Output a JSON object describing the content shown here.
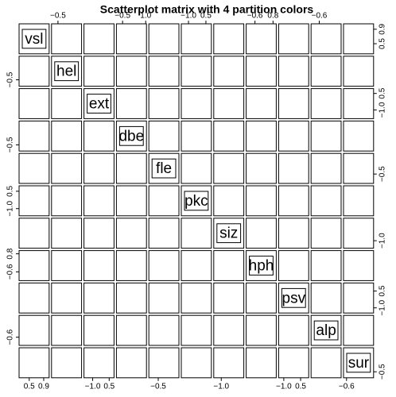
{
  "chart_data": {
    "type": "scatter_matrix",
    "title": "Scatterplot matrix with 4 partition colors",
    "variables": [
      {
        "name": "vsl",
        "lim": [
          0.22,
          1.05
        ],
        "bottom_ticks": [
          0.5,
          0.9
        ],
        "right_ticks": [
          0.5,
          0.9
        ]
      },
      {
        "name": "hel",
        "lim": [
          -0.8,
          0.6
        ],
        "top_ticks": [
          {
            "value": -0.5,
            "label": "−0.5"
          }
        ],
        "left_ticks": [
          {
            "value": -0.5,
            "label": "−0.5"
          }
        ]
      },
      {
        "name": "ext",
        "lim": [
          -1.79,
          0.94
        ],
        "bottom_ticks": [
          {
            "value": -1.0,
            "label": "−1.0"
          },
          0.5
        ],
        "right_ticks": [
          {
            "value": -1.0,
            "label": "−1.0"
          },
          0.5
        ]
      },
      {
        "name": "dbe",
        "lim": [
          -0.9,
          1.05
        ],
        "top_ticks": [
          {
            "value": -0.5,
            "label": "−0.5"
          },
          {
            "value": 1.0,
            "label": "1.0"
          }
        ],
        "left_ticks": [
          {
            "value": -0.5,
            "label": "−0.5"
          }
        ]
      },
      {
        "name": "fle",
        "lim": [
          -1.0,
          0.6
        ],
        "bottom_ticks": [
          {
            "value": -0.5,
            "label": "−0.5"
          }
        ],
        "right_ticks": [
          {
            "value": -0.5,
            "label": "−0.5"
          }
        ]
      },
      {
        "name": "pkc",
        "lim": [
          -1.62,
          0.97
        ],
        "top_ticks": [
          {
            "value": -1.0,
            "label": "−1.0"
          },
          0.5
        ],
        "left_ticks": [
          {
            "value": -1.0,
            "label": "−1.0"
          },
          0.5
        ]
      },
      {
        "name": "siz",
        "lim": [
          -1.4,
          0.2
        ],
        "bottom_ticks": [
          {
            "value": -1.0,
            "label": "−1.0"
          }
        ],
        "right_ticks": [
          {
            "value": -1.0,
            "label": "−1.0"
          }
        ]
      },
      {
        "name": "hph",
        "lim": [
          -1.28,
          1.05
        ],
        "top_ticks": [
          {
            "value": -0.6,
            "label": "−0.6"
          },
          0.8
        ],
        "left_ticks": [
          {
            "value": -0.6,
            "label": "−0.6"
          },
          0.8
        ]
      },
      {
        "name": "psv",
        "lim": [
          -1.46,
          1.22
        ],
        "bottom_ticks": [
          {
            "value": -1.0,
            "label": "−1.0"
          },
          0.5
        ],
        "right_ticks": [
          {
            "value": -1.0,
            "label": "−1.0"
          },
          0.5
        ]
      },
      {
        "name": "alp",
        "lim": [
          -0.9,
          0.2
        ],
        "top_ticks": [
          {
            "value": -0.6,
            "label": "−0.6"
          }
        ],
        "left_ticks": [
          {
            "value": -0.6,
            "label": "−0.6"
          }
        ]
      },
      {
        "name": "sur",
        "lim": [
          -0.7,
          0.3
        ],
        "bottom_ticks": [
          {
            "value": -0.6,
            "label": "−0.6"
          }
        ],
        "right_ticks": [
          {
            "value": -0.5,
            "label": "−0.5"
          }
        ]
      }
    ]
  }
}
